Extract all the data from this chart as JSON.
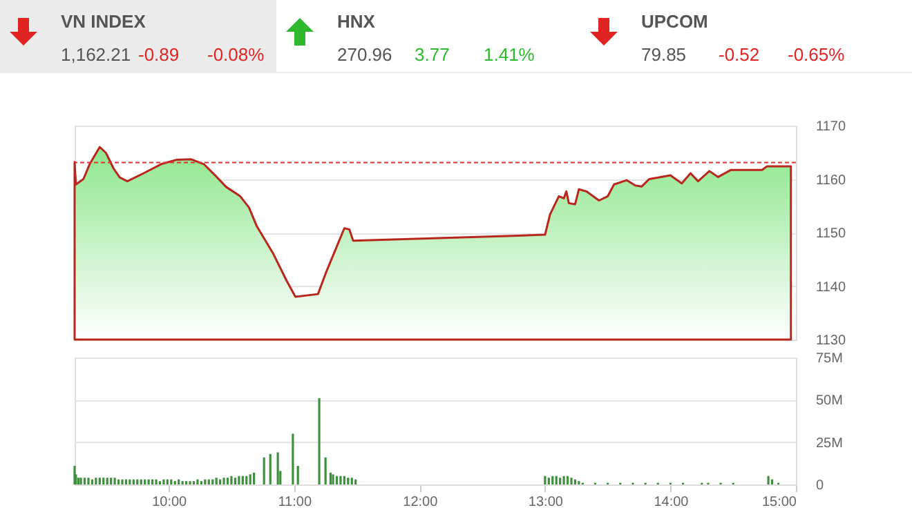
{
  "chart_data": [
    {
      "type": "other",
      "categories": [
        "VN INDEX",
        "HNX",
        "UPCOM"
      ],
      "series": [
        {
          "color": "#555555",
          "values": [
            1162.21,
            270.96,
            79.85
          ],
          "value_labels": [
            "1,162.21",
            "270.96",
            "79.85"
          ]
        },
        {
          "colors": [
            "#e02424",
            "#2eb82e",
            "#e02424"
          ],
          "values": [
            -0.89,
            3.77,
            -0.52
          ],
          "value_labels": [
            "-0.89",
            "3.77",
            "-0.52"
          ]
        },
        {
          "colors": [
            "#e02424",
            "#2eb82e",
            "#e02424"
          ],
          "values": [
            -0.08,
            1.41,
            -0.65
          ],
          "value_labels": [
            "-0.08%",
            "1.41%",
            "-0.65%"
          ]
        }
      ]
    },
    {
      "type": "area",
      "tick_labels": "y",
      "grid": "y",
      "xlim": [
        9.25,
        15
      ],
      "ylim": [
        1130,
        1170
      ],
      "yticks": [
        1130,
        1140,
        1150,
        1160,
        1170
      ],
      "xticks": [
        {
          "value": 10,
          "label": null
        },
        {
          "value": 11,
          "label": null
        },
        {
          "value": 12,
          "label": null
        },
        {
          "value": 13,
          "label": null
        },
        {
          "value": 14,
          "label": null
        },
        {
          "value": 15,
          "label": null
        }
      ],
      "ref_lines": [
        {
          "axis": "y",
          "value": 1163.1,
          "color": "#e03030",
          "line_style": "dashed"
        }
      ],
      "series": [
        {
          "color": "#b8261c",
          "x": [
            9.25,
            9.26,
            9.32,
            9.37,
            9.45,
            9.5,
            9.56,
            9.61,
            9.67,
            9.8,
            9.94,
            10.06,
            10.18,
            10.28,
            10.37,
            10.46,
            10.57,
            10.64,
            10.7,
            10.83,
            10.94,
            11.01,
            11.19,
            11.25,
            11.34,
            11.4,
            11.44,
            11.47,
            12.74,
            13.0,
            13.04,
            13.11,
            13.15,
            13.17,
            13.19,
            13.24,
            13.27,
            13.33,
            13.43,
            13.5,
            13.55,
            13.65,
            13.72,
            13.77,
            13.83,
            14.0,
            14.09,
            14.16,
            14.22,
            14.31,
            14.38,
            14.48,
            14.73,
            14.77,
            14.96
          ],
          "values": [
            1163.2,
            1159.0,
            1160.0,
            1162.8,
            1166.0,
            1164.9,
            1162.0,
            1160.3,
            1159.6,
            1161.1,
            1162.8,
            1163.6,
            1163.7,
            1162.8,
            1160.7,
            1158.5,
            1156.8,
            1154.7,
            1151.3,
            1146.2,
            1141.0,
            1138.0,
            1138.5,
            1142.3,
            1147.4,
            1150.8,
            1150.6,
            1148.5,
            1149.4,
            1149.6,
            1153.4,
            1156.8,
            1156.4,
            1157.7,
            1155.5,
            1155.3,
            1158.1,
            1157.7,
            1156.0,
            1156.8,
            1159.0,
            1159.8,
            1158.8,
            1158.6,
            1160.0,
            1160.7,
            1159.2,
            1161.1,
            1159.6,
            1161.5,
            1160.4,
            1161.7,
            1161.7,
            1162.4,
            1162.4
          ]
        }
      ]
    },
    {
      "type": "bar",
      "grid": "y",
      "xlim": [
        9.25,
        15
      ],
      "ylim": [
        0,
        75
      ],
      "yticks": [
        0,
        {
          "value": 25,
          "label": "25M"
        },
        {
          "value": 50,
          "label": "50M"
        },
        {
          "value": 75,
          "label": "75M"
        }
      ],
      "xticks": [
        {
          "value": 10,
          "label": "10:00"
        },
        {
          "value": 11,
          "label": "11:00"
        },
        {
          "value": 12,
          "label": "12:00"
        },
        {
          "value": 13,
          "label": "13:00"
        },
        {
          "value": 14,
          "label": "14:00"
        },
        {
          "value": 15,
          "label": "15:00"
        }
      ],
      "series": [
        {
          "color": "#3f8f3f",
          "x": [
            9.25,
            9.26,
            9.28,
            9.3,
            9.33,
            9.36,
            9.39,
            9.42,
            9.45,
            9.48,
            9.51,
            9.54,
            9.57,
            9.6,
            9.63,
            9.66,
            9.69,
            9.72,
            9.75,
            9.78,
            9.81,
            9.84,
            9.87,
            9.9,
            9.93,
            9.96,
            9.99,
            10.02,
            10.05,
            10.08,
            10.11,
            10.14,
            10.17,
            10.2,
            10.23,
            10.26,
            10.29,
            10.32,
            10.35,
            10.38,
            10.41,
            10.44,
            10.47,
            10.5,
            10.53,
            10.56,
            10.59,
            10.62,
            10.65,
            10.68,
            10.76,
            10.81,
            10.87,
            10.89,
            10.99,
            11.03,
            11.2,
            11.25,
            11.29,
            11.31,
            11.34,
            11.37,
            11.4,
            11.43,
            11.46,
            11.49,
            13.0,
            13.03,
            13.06,
            13.09,
            13.12,
            13.15,
            13.18,
            13.21,
            13.24,
            13.27,
            13.3,
            13.4,
            13.5,
            13.6,
            13.7,
            13.8,
            13.9,
            14.0,
            14.1,
            14.25,
            14.3,
            14.4,
            14.5,
            14.78,
            14.81,
            14.86
          ],
          "values": [
            11,
            6,
            4,
            4,
            4,
            4,
            3,
            4,
            4,
            4,
            4,
            4,
            4,
            3,
            3,
            3,
            3,
            3,
            3,
            3,
            3,
            3,
            3,
            3,
            2,
            3,
            3,
            3,
            2,
            3,
            2,
            2,
            2,
            2,
            3,
            2,
            3,
            3,
            3,
            4,
            3,
            4,
            4,
            5,
            4,
            5,
            5,
            5,
            6,
            7,
            16,
            18,
            19,
            8,
            30,
            11,
            51,
            16,
            7,
            6,
            5,
            5,
            5,
            4,
            4,
            3,
            5,
            4,
            5,
            5,
            4,
            5,
            5,
            4,
            3,
            2,
            1,
            1,
            1,
            1,
            1,
            1,
            1,
            1,
            1,
            1,
            1,
            1,
            1,
            5,
            3,
            1
          ]
        }
      ]
    }
  ]
}
